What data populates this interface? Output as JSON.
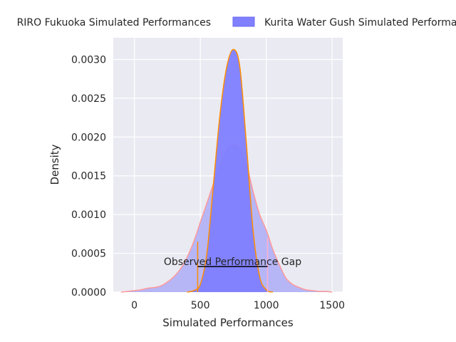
{
  "chart_data": {
    "type": "area",
    "title": "",
    "xlabel": "Simulated Performances",
    "ylabel": "Density",
    "xlim": [
      -160,
      1580
    ],
    "ylim": [
      0,
      0.00328
    ],
    "x_ticks": [
      0,
      500,
      1000,
      1500
    ],
    "y_ticks": [
      0.0,
      0.0005,
      0.001,
      0.0015,
      0.002,
      0.0025,
      0.003
    ],
    "y_tick_labels": [
      "0.0000",
      "0.0005",
      "0.0010",
      "0.0015",
      "0.0020",
      "0.0025",
      "0.0030"
    ],
    "grid": true,
    "legend_placement": "top-center-outside",
    "series": [
      {
        "name": "RIRO Fukuoka Simulated Performances",
        "fill_color": "#b3b3f5",
        "line_color": "#ff9999",
        "line_style": "solid",
        "points": [
          [
            -100,
            0.0
          ],
          [
            0,
            2e-05
          ],
          [
            50,
            3e-05
          ],
          [
            100,
            5e-05
          ],
          [
            150,
            6e-05
          ],
          [
            200,
            8e-05
          ],
          [
            250,
            0.00013
          ],
          [
            300,
            0.0002
          ],
          [
            350,
            0.0003
          ],
          [
            400,
            0.00045
          ],
          [
            450,
            0.00065
          ],
          [
            500,
            0.0009
          ],
          [
            550,
            0.00115
          ],
          [
            600,
            0.0014
          ],
          [
            650,
            0.00165
          ],
          [
            700,
            0.00185
          ],
          [
            750,
            0.0019
          ],
          [
            800,
            0.00185
          ],
          [
            850,
            0.00165
          ],
          [
            900,
            0.0013
          ],
          [
            950,
            0.001
          ],
          [
            1000,
            0.0008
          ],
          [
            1050,
            0.00055
          ],
          [
            1100,
            0.00035
          ],
          [
            1150,
            0.00018
          ],
          [
            1200,
            0.0001
          ],
          [
            1250,
            6e-05
          ],
          [
            1300,
            3e-05
          ],
          [
            1350,
            2e-05
          ],
          [
            1400,
            1e-05
          ],
          [
            1450,
            1e-05
          ],
          [
            1500,
            0.0
          ]
        ]
      },
      {
        "name": "Kurita Water Gush Simulated Performances",
        "fill_color": "#8080ff",
        "line_color": "#ff8c00",
        "line_style": "solid",
        "points": [
          [
            400,
            0.0
          ],
          [
            450,
            2e-05
          ],
          [
            500,
            0.0001
          ],
          [
            550,
            0.0005
          ],
          [
            600,
            0.0014
          ],
          [
            650,
            0.0023
          ],
          [
            700,
            0.0029
          ],
          [
            750,
            0.00313
          ],
          [
            800,
            0.0029
          ],
          [
            850,
            0.0019
          ],
          [
            900,
            0.0008
          ],
          [
            950,
            0.0002
          ],
          [
            1000,
            3e-05
          ],
          [
            1050,
            0.0
          ]
        ]
      }
    ],
    "annotations": [
      {
        "text": "Observed Performance Gap",
        "x_start": 480,
        "x_end": 1010,
        "y": 0.00033
      }
    ],
    "markers": [
      {
        "x": 480,
        "y_top": 0.00065,
        "color": "#ff8c00"
      },
      {
        "x": 1010,
        "y_top": 0.0007,
        "color": "#ffb0d0"
      }
    ]
  }
}
